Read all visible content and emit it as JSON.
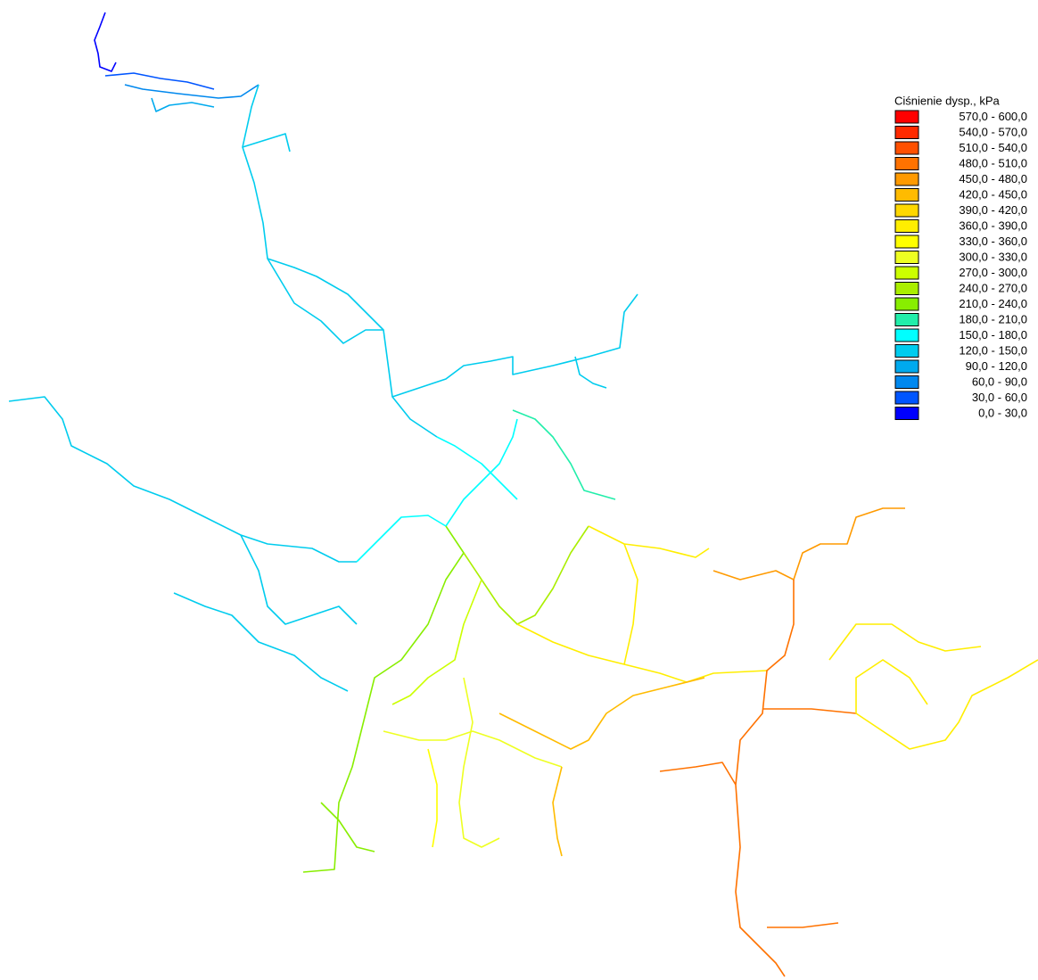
{
  "legend": {
    "title": "Ciśnienie dysp., kPa",
    "items": [
      {
        "label": "570,0 - 600,0",
        "color": "#ff0000"
      },
      {
        "label": "540,0 - 570,0",
        "color": "#ff2a00"
      },
      {
        "label": "510,0 - 540,0",
        "color": "#ff5000"
      },
      {
        "label": "480,0 - 510,0",
        "color": "#ff7200"
      },
      {
        "label": "450,0 - 480,0",
        "color": "#ff9a00"
      },
      {
        "label": "420,0 - 450,0",
        "color": "#ffbb00"
      },
      {
        "label": "390,0 - 420,0",
        "color": "#ffd800"
      },
      {
        "label": "360,0 - 390,0",
        "color": "#ffee00"
      },
      {
        "label": "330,0 - 360,0",
        "color": "#ffff00"
      },
      {
        "label": "300,0 - 330,0",
        "color": "#eeff22"
      },
      {
        "label": "270,0 - 300,0",
        "color": "#ccff00"
      },
      {
        "label": "240,0 - 270,0",
        "color": "#aaee00"
      },
      {
        "label": "210,0 - 240,0",
        "color": "#88ee00"
      },
      {
        "label": "180,0 - 210,0",
        "color": "#22eeaa"
      },
      {
        "label": "150,0 - 180,0",
        "color": "#00ffff"
      },
      {
        "label": "120,0 - 150,0",
        "color": "#00ccee"
      },
      {
        "label": "90,0 - 120,0",
        "color": "#00aaee"
      },
      {
        "label": "60,0 - 90,0",
        "color": "#0088ee"
      },
      {
        "label": "30,0 - 60,0",
        "color": "#0055ff"
      },
      {
        "label": "0,0 - 30,0",
        "color": "#0000ff"
      }
    ]
  }
}
